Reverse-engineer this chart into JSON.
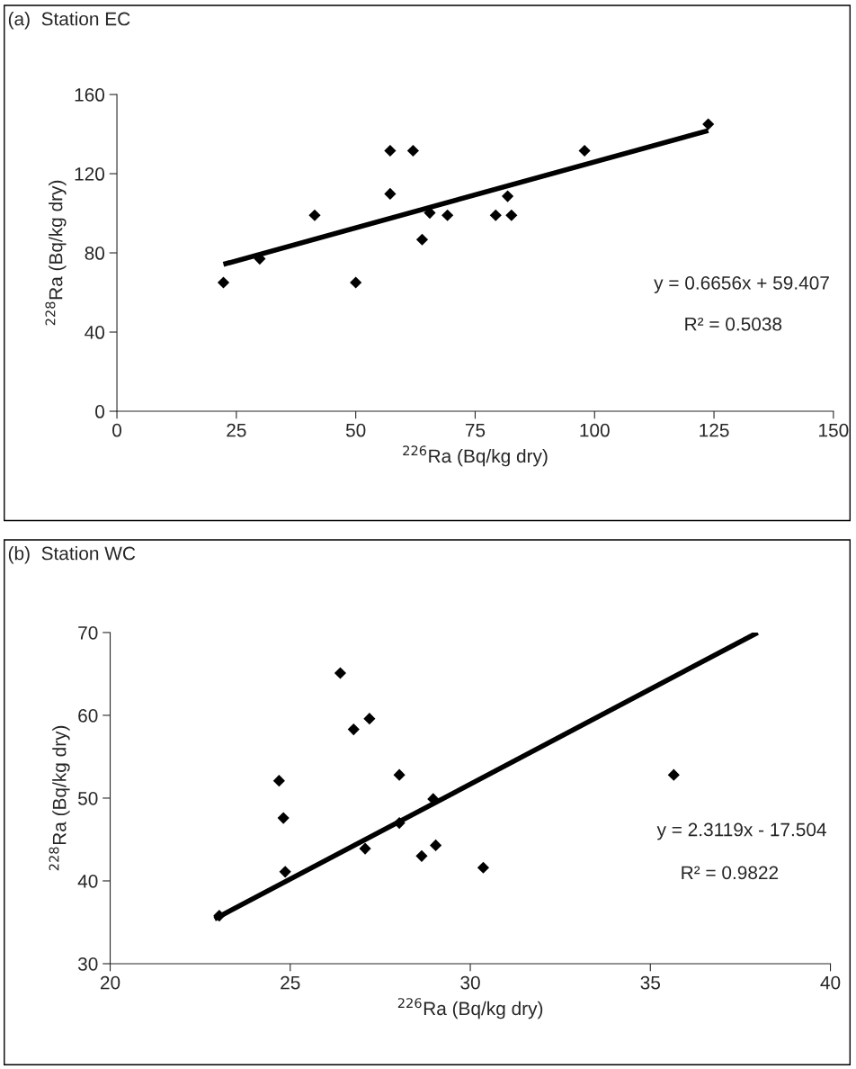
{
  "chart_data": [
    {
      "type": "scatter",
      "title": "(a)  Station EC",
      "xlabel": "$^{226}$Ra (Bq/kg dry)",
      "ylabel": "$^{228}$Ra (Bq/kg dry)",
      "xlim": [
        0,
        150
      ],
      "xticks": [
        0,
        25,
        50,
        75,
        100,
        125,
        150
      ],
      "ylim": [
        0,
        160
      ],
      "yticks": [
        0,
        40,
        80,
        120,
        160
      ],
      "grid": false,
      "legend": false,
      "annotations": [
        "y = 0.6656x + 59.407",
        "R² = 0.5038"
      ],
      "series": [
        {
          "marker": "diamond",
          "color": "#000000",
          "x": [
            22.3,
            29.9,
            41.4,
            50.0,
            57.2,
            57.2,
            62.0,
            63.9,
            65.5,
            69.2,
            79.3,
            81.8,
            82.6,
            97.9,
            123.8
          ],
          "values": [
            65,
            77,
            99,
            65,
            131.6,
            109.8,
            131.6,
            86.7,
            100.2,
            99,
            99,
            108.6,
            99,
            131.6,
            145
          ]
        },
        {
          "type": "line",
          "color": "#000000",
          "x": [
            22.3,
            123.8
          ],
          "values": [
            74.2,
            141.8
          ]
        }
      ]
    },
    {
      "type": "scatter",
      "title": "(b)  Station WC",
      "xlabel": "$^{226}$Ra (Bq/kg dry)",
      "ylabel": "$^{228}$Ra (Bq/kg dry)",
      "xlim": [
        20,
        40
      ],
      "xticks": [
        20,
        25,
        30,
        35,
        40
      ],
      "ylim": [
        30,
        70
      ],
      "yticks": [
        30,
        40,
        50,
        60,
        70
      ],
      "grid": false,
      "legend": false,
      "annotations": [
        "y = 2.3119x - 17.504",
        "R² = 0.9822"
      ],
      "series": [
        {
          "marker": "diamond",
          "color": "#000000",
          "x": [
            23.03,
            24.69,
            24.81,
            24.86,
            26.39,
            26.76,
            27.2,
            27.08,
            28.03,
            28.03,
            28.97,
            28.65,
            29.04,
            30.36,
            35.65
          ],
          "values": [
            35.8,
            52.1,
            47.6,
            41.1,
            65.1,
            58.3,
            59.6,
            43.9,
            52.8,
            47.0,
            49.9,
            43.0,
            44.3,
            41.6,
            52.8
          ]
        },
        {
          "type": "line",
          "color": "#000000",
          "x": [
            22.9,
            37.98
          ],
          "values": [
            35.4,
            70
          ]
        }
      ]
    }
  ]
}
